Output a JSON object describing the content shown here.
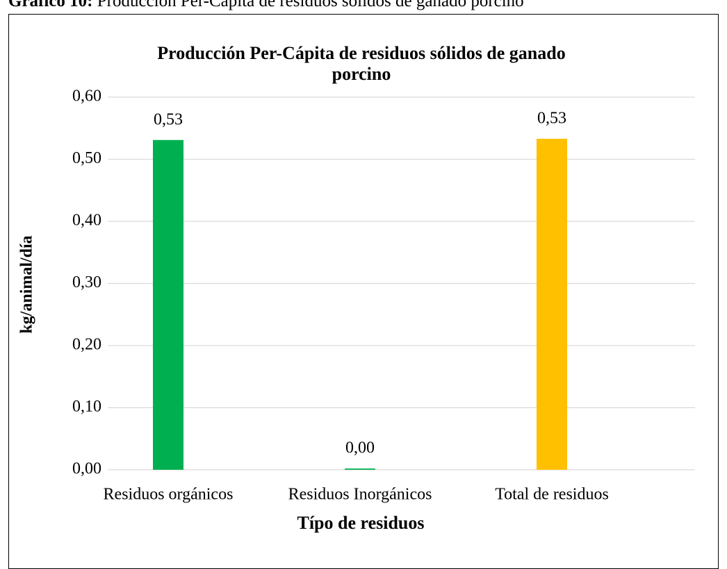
{
  "caption": {
    "label": "Gráfico 10:",
    "text": "Producción Per-Cápita de residuos sólidos de ganado porcino"
  },
  "chart_data": {
    "type": "bar",
    "title": "Producción Per-Cápita de residuos sólidos de ganado porcino",
    "x_label": "Típo de residuos",
    "y_label": "kg/animal/día",
    "categories": [
      "Residuos orgánicos",
      "Residuos Inorgánicos",
      "Total de residuos"
    ],
    "values": [
      0.531,
      0.002,
      0.533
    ],
    "value_labels": [
      "0,53",
      "0,00",
      "0,53"
    ],
    "colors": [
      "#00b050",
      "#00b050",
      "#ffc000"
    ],
    "ylim": [
      0,
      0.6
    ],
    "yticks": [
      {
        "value": 0,
        "label": "0,00"
      },
      {
        "value": 0.1,
        "label": "0,10"
      },
      {
        "value": 0.2,
        "label": "0,20"
      },
      {
        "value": 0.3,
        "label": "0,30"
      },
      {
        "value": 0.4,
        "label": "0,40"
      },
      {
        "value": 0.5,
        "label": "0,50"
      },
      {
        "value": 0.6,
        "label": "0,60"
      }
    ],
    "grid": true
  }
}
